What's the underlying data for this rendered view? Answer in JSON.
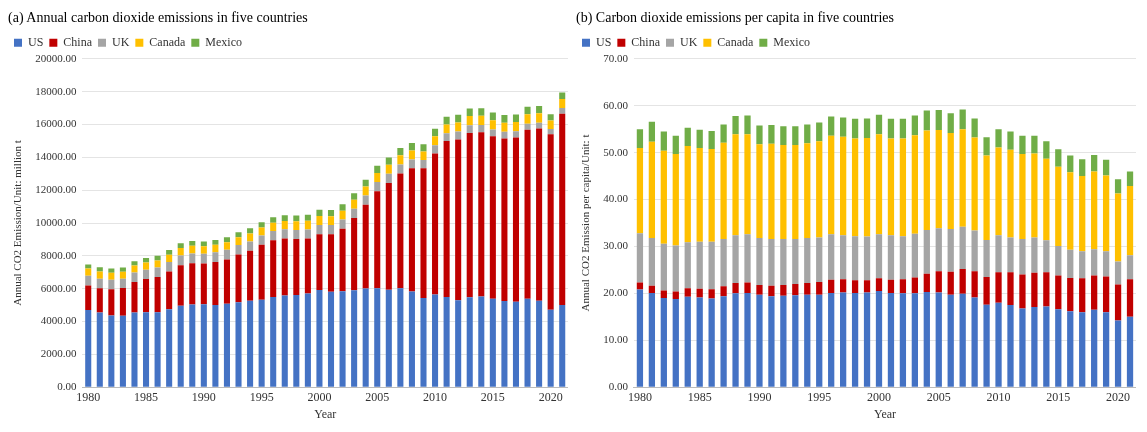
{
  "chart_data": [
    {
      "type": "bar",
      "title": "(a) Annual carbon dioxide emissions in five countries",
      "xlabel": "Year",
      "ylabel": "Annual CO2 Emission/Unit: million t",
      "stacked": true,
      "grid": "y",
      "legend": "top left",
      "categories": [
        "1980",
        null,
        null,
        null,
        null,
        "1985",
        null,
        null,
        null,
        null,
        "1990",
        null,
        null,
        null,
        null,
        "1995",
        null,
        null,
        null,
        null,
        "2000",
        null,
        null,
        null,
        null,
        "2005",
        null,
        null,
        null,
        null,
        "2010",
        null,
        null,
        null,
        null,
        "2015",
        null,
        null,
        null,
        null,
        "2020",
        null
      ],
      "ylim": [
        0,
        20000
      ],
      "yticks": [
        {
          "value": 0,
          "label": "0.00"
        },
        {
          "value": 2000,
          "label": "2000.00"
        },
        {
          "value": 4000,
          "label": "4000.00"
        },
        {
          "value": 6000,
          "label": "6000.00"
        },
        {
          "value": 8000,
          "label": "8000.00"
        },
        {
          "value": 10000,
          "label": "10000.00"
        },
        {
          "value": 12000,
          "label": "12000.00"
        },
        {
          "value": 14000,
          "label": "14000.00"
        },
        {
          "value": 16000,
          "label": "16000.00"
        },
        {
          "value": 18000,
          "label": "18000.00"
        },
        {
          "value": 20000,
          "label": "20000.00"
        }
      ],
      "series": [
        {
          "name": "US",
          "color": "#4472c4",
          "values": [
            4700,
            4550,
            4360,
            4350,
            4550,
            4560,
            4570,
            4740,
            4960,
            5040,
            5050,
            5000,
            5080,
            5180,
            5260,
            5330,
            5500,
            5580,
            5620,
            5700,
            5920,
            5810,
            5850,
            5900,
            6010,
            6030,
            5940,
            6020,
            5830,
            5430,
            5640,
            5490,
            5290,
            5480,
            5530,
            5380,
            5250,
            5210,
            5380,
            5260,
            4710,
            5010
          ]
        },
        {
          "name": "China",
          "color": "#c00000",
          "values": [
            1500,
            1480,
            1610,
            1690,
            1860,
            2030,
            2140,
            2300,
            2470,
            2510,
            2480,
            2620,
            2700,
            2900,
            3050,
            3350,
            3450,
            3480,
            3400,
            3350,
            3400,
            3500,
            3800,
            4400,
            5100,
            5900,
            6500,
            7000,
            7500,
            7900,
            8600,
            9500,
            9800,
            10000,
            10000,
            9900,
            9900,
            10000,
            10300,
            10500,
            10700,
            11650
          ]
        },
        {
          "name": "UK",
          "color": "#a5a5a5",
          "values": [
            590,
            580,
            575,
            570,
            570,
            570,
            585,
            590,
            595,
            600,
            600,
            595,
            585,
            575,
            570,
            560,
            565,
            555,
            560,
            560,
            560,
            570,
            560,
            565,
            560,
            560,
            555,
            550,
            540,
            500,
            500,
            470,
            480,
            480,
            440,
            420,
            400,
            380,
            370,
            350,
            320,
            340
          ]
        },
        {
          "name": "Canada",
          "color": "#ffc000",
          "values": [
            440,
            430,
            420,
            415,
            425,
            430,
            425,
            440,
            455,
            460,
            460,
            455,
            465,
            470,
            480,
            490,
            500,
            510,
            520,
            530,
            540,
            535,
            540,
            550,
            555,
            560,
            550,
            560,
            550,
            520,
            540,
            545,
            545,
            550,
            555,
            560,
            550,
            555,
            570,
            570,
            520,
            550
          ]
        },
        {
          "name": "Mexico",
          "color": "#70ad47",
          "values": [
            250,
            265,
            270,
            265,
            270,
            280,
            280,
            285,
            290,
            290,
            290,
            300,
            305,
            310,
            315,
            320,
            330,
            340,
            360,
            370,
            380,
            380,
            385,
            400,
            410,
            430,
            440,
            445,
            450,
            450,
            460,
            470,
            475,
            470,
            470,
            470,
            475,
            470,
            460,
            440,
            380,
            400
          ]
        }
      ]
    },
    {
      "type": "bar",
      "title": "(b) Carbon dioxide emissions per capita in five countries",
      "xlabel": "Year",
      "ylabel": "Annual CO2 Emission per capita/Unit: t",
      "stacked": true,
      "grid": "y",
      "legend": "top left",
      "categories": [
        "1980",
        null,
        null,
        null,
        null,
        "1985",
        null,
        null,
        null,
        null,
        "1990",
        null,
        null,
        null,
        null,
        "1995",
        null,
        null,
        null,
        null,
        "2000",
        null,
        null,
        null,
        null,
        "2005",
        null,
        null,
        null,
        null,
        "2010",
        null,
        null,
        null,
        null,
        "2015",
        null,
        null,
        null,
        null,
        "2020",
        null
      ],
      "ylim": [
        0,
        70
      ],
      "yticks": [
        {
          "value": 0,
          "label": "0.00"
        },
        {
          "value": 10,
          "label": "10.00"
        },
        {
          "value": 20,
          "label": "20.00"
        },
        {
          "value": 30,
          "label": "30.00"
        },
        {
          "value": 40,
          "label": "40.00"
        },
        {
          "value": 50,
          "label": "50.00"
        },
        {
          "value": 60,
          "label": "60.00"
        },
        {
          "value": 70,
          "label": "70.00"
        }
      ],
      "series": [
        {
          "name": "US",
          "color": "#4472c4",
          "values": [
            20.8,
            20.1,
            19.0,
            18.8,
            19.3,
            19.1,
            18.9,
            19.4,
            20.0,
            20.1,
            19.7,
            19.4,
            19.5,
            19.6,
            19.7,
            19.7,
            20.1,
            20.2,
            20.1,
            20.2,
            20.5,
            20.1,
            20.0,
            20.0,
            20.3,
            20.2,
            19.7,
            19.9,
            19.1,
            17.6,
            18.0,
            17.5,
            16.8,
            17.1,
            17.2,
            16.6,
            16.2,
            16.0,
            16.5,
            16.0,
            14.2,
            15.0
          ]
        },
        {
          "name": "China",
          "color": "#c00000",
          "values": [
            1.5,
            1.5,
            1.6,
            1.6,
            1.8,
            1.9,
            2.0,
            2.1,
            2.2,
            2.2,
            2.1,
            2.2,
            2.3,
            2.4,
            2.5,
            2.7,
            2.8,
            2.8,
            2.7,
            2.6,
            2.7,
            2.8,
            3.0,
            3.4,
            3.9,
            4.5,
            4.9,
            5.3,
            5.6,
            5.9,
            6.5,
            7.0,
            7.2,
            7.3,
            7.3,
            7.2,
            7.1,
            7.2,
            7.3,
            7.6,
            7.7,
            8.0
          ]
        },
        {
          "name": "UK",
          "color": "#a5a5a5",
          "values": [
            10.5,
            10.2,
            10.0,
            9.8,
            9.8,
            10.0,
            10.1,
            10.1,
            10.2,
            10.3,
            10.0,
            10.0,
            9.8,
            9.6,
            9.6,
            9.5,
            9.7,
            9.4,
            9.4,
            9.3,
            9.4,
            9.5,
            9.2,
            9.3,
            9.3,
            9.2,
            9.1,
            9.0,
            8.7,
            7.9,
            7.9,
            7.4,
            7.6,
            7.5,
            6.8,
            6.3,
            6.0,
            5.8,
            5.6,
            5.4,
            4.9,
            5.1
          ]
        },
        {
          "name": "Canada",
          "color": "#ffc000",
          "values": [
            18.2,
            20.5,
            19.8,
            19.5,
            20.5,
            20.0,
            19.8,
            20.5,
            21.5,
            21.3,
            20.0,
            20.3,
            20.0,
            20.0,
            20.2,
            20.5,
            21.0,
            21.0,
            20.8,
            21.0,
            21.3,
            20.6,
            20.8,
            21.0,
            21.2,
            20.9,
            20.5,
            20.8,
            19.8,
            18.0,
            18.7,
            18.7,
            18.1,
            17.9,
            17.4,
            16.9,
            16.5,
            16.0,
            16.6,
            16.1,
            14.5,
            14.8
          ]
        },
        {
          "name": "Mexico",
          "color": "#70ad47",
          "values": [
            4.0,
            4.3,
            4.1,
            3.9,
            3.9,
            3.9,
            3.8,
            3.9,
            3.9,
            4.0,
            4.0,
            4.0,
            4.0,
            4.0,
            4.0,
            4.0,
            4.1,
            4.1,
            4.2,
            4.2,
            4.2,
            4.2,
            4.2,
            4.2,
            4.3,
            4.3,
            4.2,
            4.2,
            4.1,
            3.9,
            3.9,
            3.9,
            3.9,
            3.8,
            3.7,
            3.7,
            3.6,
            3.6,
            3.5,
            3.4,
            3.0,
            3.1
          ]
        }
      ]
    }
  ]
}
